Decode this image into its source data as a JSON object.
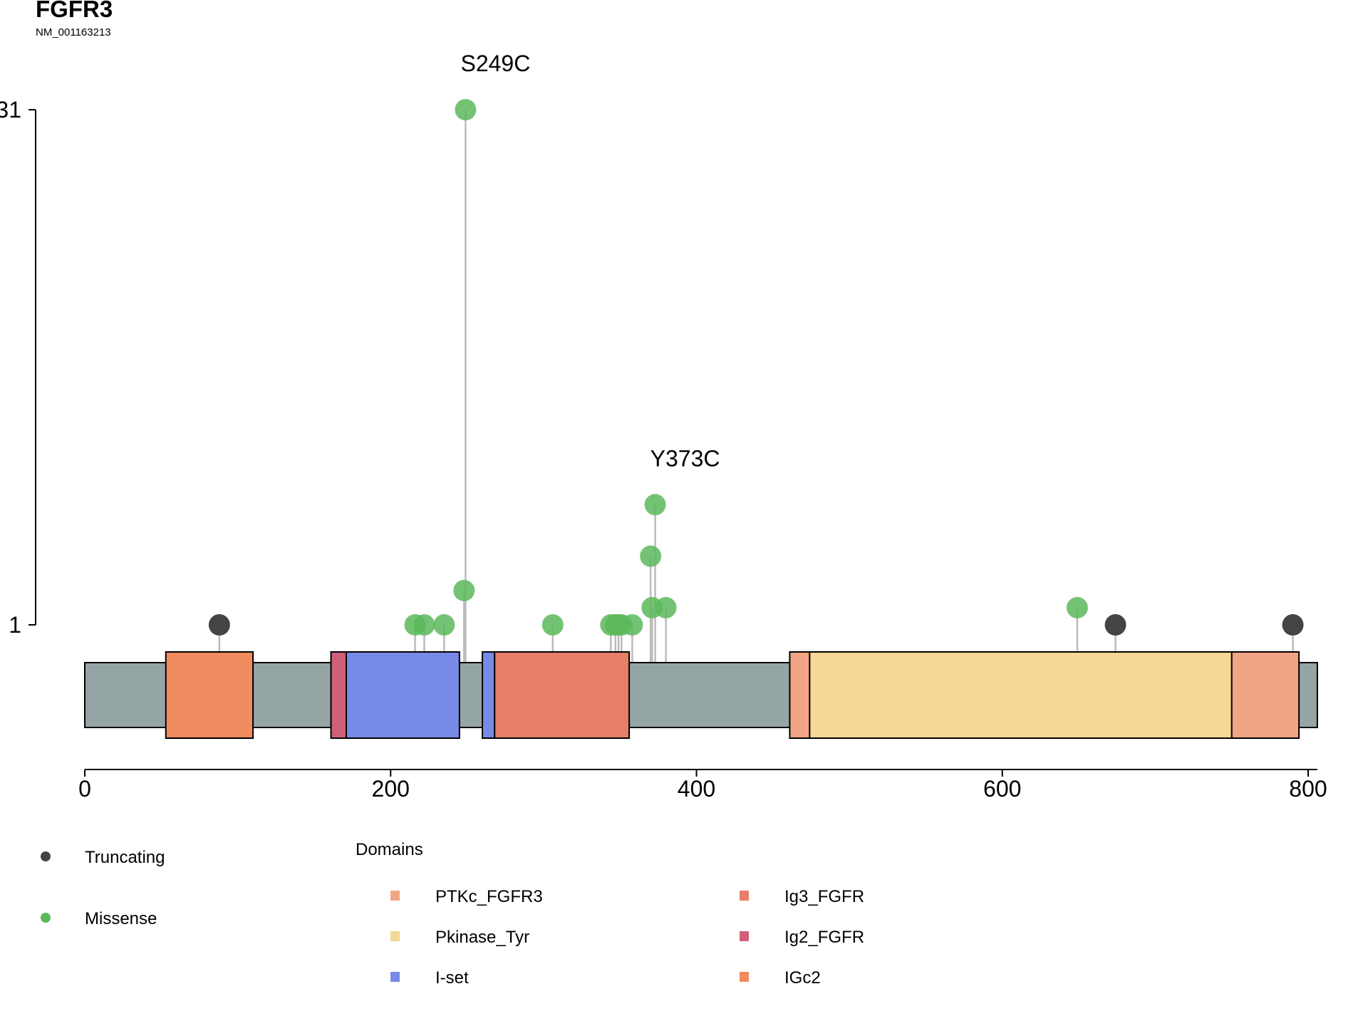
{
  "chart_data": {
    "type": "lollipop",
    "title": "FGFR3",
    "subtitle": "NM_001163213",
    "protein_length": 806,
    "x_ticks": [
      0,
      200,
      400,
      600,
      800
    ],
    "xlim": [
      0,
      800
    ],
    "y_ticks": [
      1,
      31
    ],
    "ylim": [
      1,
      31
    ],
    "colors": {
      "backbone": "#95a5a5",
      "Truncating": "#444444",
      "Missense": "#5cb85c",
      "stem": "#bbbbbb"
    },
    "domains": [
      {
        "name": "IGc2",
        "start": 53,
        "end": 110,
        "color": "#f08c60"
      },
      {
        "name": "Ig2_FGFR",
        "start": 161,
        "end": 171,
        "color": "#d0607a"
      },
      {
        "name": "I-set",
        "start": 171,
        "end": 245,
        "color": "#788ae8"
      },
      {
        "name": "I-set",
        "start": 260,
        "end": 268,
        "color": "#788ae8"
      },
      {
        "name": "Ig3_FGFR",
        "start": 268,
        "end": 356,
        "color": "#e67e68"
      },
      {
        "name": "PTKc_FGFR3",
        "start": 461,
        "end": 794,
        "color": "#f2a585"
      },
      {
        "name": "Pkinase_Tyr",
        "start": 474,
        "end": 750,
        "color": "#f5d796"
      }
    ],
    "mutations": [
      {
        "pos": 88,
        "count": 1,
        "type": "Truncating"
      },
      {
        "pos": 674,
        "count": 1,
        "type": "Truncating"
      },
      {
        "pos": 790,
        "count": 1,
        "type": "Truncating"
      },
      {
        "pos": 216,
        "count": 1,
        "type": "Missense"
      },
      {
        "pos": 222,
        "count": 1,
        "type": "Missense"
      },
      {
        "pos": 235,
        "count": 1,
        "type": "Missense"
      },
      {
        "pos": 248,
        "count": 3,
        "type": "Missense"
      },
      {
        "pos": 249,
        "count": 31,
        "type": "Missense",
        "label": "S249C"
      },
      {
        "pos": 306,
        "count": 1,
        "type": "Missense"
      },
      {
        "pos": 344,
        "count": 1,
        "type": "Missense"
      },
      {
        "pos": 347,
        "count": 1,
        "type": "Missense"
      },
      {
        "pos": 349,
        "count": 1,
        "type": "Missense"
      },
      {
        "pos": 351,
        "count": 1,
        "type": "Missense"
      },
      {
        "pos": 358,
        "count": 1,
        "type": "Missense"
      },
      {
        "pos": 370,
        "count": 5,
        "type": "Missense"
      },
      {
        "pos": 371,
        "count": 2,
        "type": "Missense"
      },
      {
        "pos": 373,
        "count": 8,
        "type": "Missense",
        "label": "Y373C"
      },
      {
        "pos": 380,
        "count": 2,
        "type": "Missense"
      },
      {
        "pos": 649,
        "count": 2,
        "type": "Missense"
      }
    ],
    "legend": {
      "mutation_types": [
        "Truncating",
        "Missense"
      ],
      "domains_title": "Domains",
      "domain_items": [
        {
          "name": "PTKc_FGFR3",
          "color": "#f2a585"
        },
        {
          "name": "Pkinase_Tyr",
          "color": "#f5d796"
        },
        {
          "name": "I-set",
          "color": "#788ae8"
        },
        {
          "name": "Ig3_FGFR",
          "color": "#e67e68"
        },
        {
          "name": "Ig2_FGFR",
          "color": "#d0607a"
        },
        {
          "name": "IGc2",
          "color": "#f08c60"
        }
      ]
    }
  }
}
